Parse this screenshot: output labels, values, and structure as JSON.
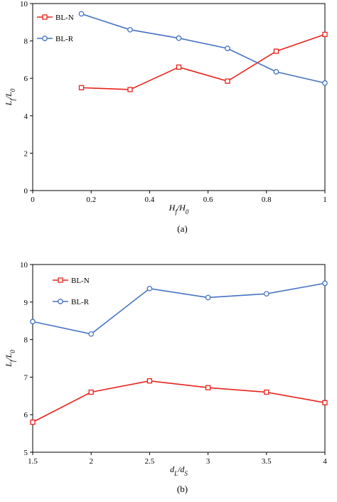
{
  "chart_data": [
    {
      "type": "line",
      "caption": "(a)",
      "xlabel": "H_f/H_0",
      "ylabel": "L_f/L_0",
      "xlim": [
        0,
        1
      ],
      "ylim": [
        0,
        10
      ],
      "xticks": [
        0,
        0.2,
        0.4,
        0.6,
        0.8,
        1
      ],
      "xtick_labels": [
        "0",
        "0.2",
        "0.4",
        "0.6",
        "0.8",
        "1"
      ],
      "yticks": [
        0,
        2,
        4,
        6,
        8,
        10
      ],
      "ytick_labels": [
        "0",
        "2",
        "4",
        "6",
        "8",
        "10"
      ],
      "grid": false,
      "legend_position": "top-left",
      "series": [
        {
          "name": "BL-N",
          "color": "#e8221b",
          "marker": "square",
          "x": [
            0.1667,
            0.3333,
            0.5,
            0.6667,
            0.8333,
            1.0
          ],
          "y": [
            5.5,
            5.4,
            6.6,
            5.85,
            7.45,
            8.35
          ]
        },
        {
          "name": "BL-R",
          "color": "#4472c4",
          "marker": "circle",
          "x": [
            0.1667,
            0.3333,
            0.5,
            0.6667,
            0.8333,
            1.0
          ],
          "y": [
            9.45,
            8.6,
            8.15,
            7.6,
            6.35,
            5.75
          ]
        }
      ]
    },
    {
      "type": "line",
      "caption": "(b)",
      "xlabel": "d_L/d_S",
      "ylabel": "L_f/L_0",
      "xlim": [
        1.5,
        4
      ],
      "ylim": [
        5,
        10
      ],
      "xticks": [
        1.5,
        2,
        2.5,
        3,
        3.5,
        4
      ],
      "xtick_labels": [
        "1.5",
        "2",
        "2.5",
        "3",
        "3.5",
        "4"
      ],
      "yticks": [
        5,
        6,
        7,
        8,
        9,
        10
      ],
      "ytick_labels": [
        "5",
        "6",
        "7",
        "8",
        "9",
        "10"
      ],
      "grid": false,
      "legend_position": "top-left",
      "series": [
        {
          "name": "BL-N",
          "color": "#e8221b",
          "marker": "square",
          "x": [
            1.5,
            2,
            2.5,
            3,
            3.5,
            4
          ],
          "y": [
            5.8,
            6.6,
            6.9,
            6.72,
            6.6,
            6.32
          ]
        },
        {
          "name": "BL-R",
          "color": "#4472c4",
          "marker": "circle",
          "x": [
            1.5,
            2,
            2.5,
            3,
            3.5,
            4
          ],
          "y": [
            8.48,
            8.15,
            9.36,
            9.12,
            9.22,
            9.5
          ]
        }
      ]
    }
  ]
}
